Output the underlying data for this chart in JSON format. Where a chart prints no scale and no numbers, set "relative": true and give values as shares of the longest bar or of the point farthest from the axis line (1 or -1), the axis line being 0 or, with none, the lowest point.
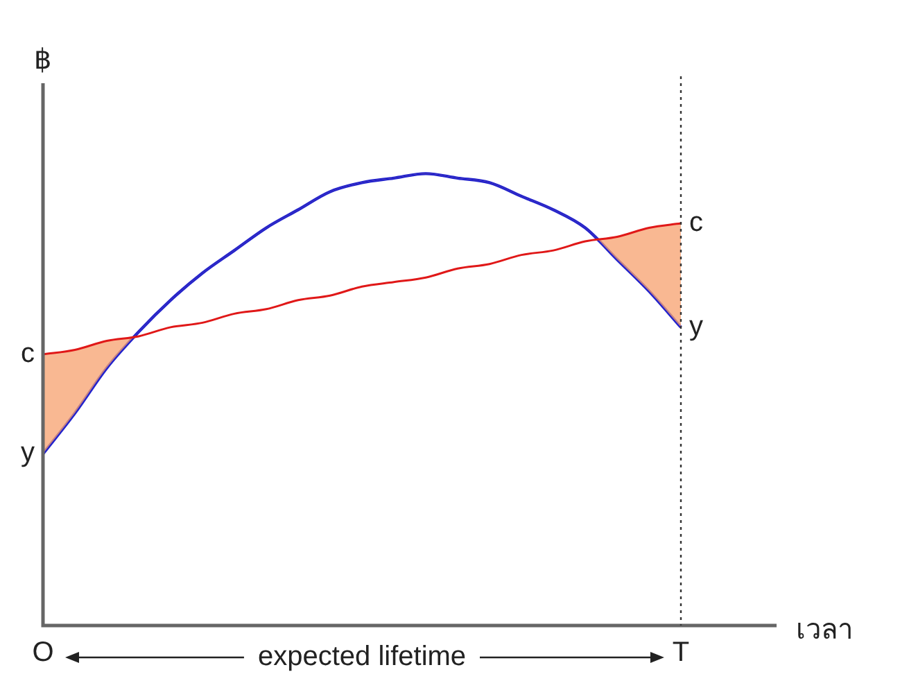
{
  "chart_data": {
    "type": "line",
    "relative": true,
    "xlabel": "เวลา",
    "ylabel": "฿",
    "categories": [
      "O",
      null,
      null,
      null,
      null,
      null,
      null,
      null,
      null,
      null,
      null,
      null,
      null,
      null,
      null,
      null,
      null,
      null,
      null,
      null,
      "T",
      null,
      null,
      null
    ],
    "series": [
      {
        "color": "#e01818",
        "values": [
          0.6,
          0.61,
          0.63,
          0.64,
          0.66,
          0.67,
          0.69,
          0.7,
          0.72,
          0.73,
          0.75,
          0.76,
          0.77,
          0.79,
          0.8,
          0.82,
          0.83,
          0.85,
          0.86,
          0.88,
          0.89,
          null,
          null,
          null
        ]
      },
      {
        "color": "#2222cc",
        "values": [
          0.38,
          0.47,
          0.57,
          0.65,
          0.72,
          0.78,
          0.83,
          0.88,
          0.92,
          0.96,
          0.98,
          0.99,
          1.0,
          0.99,
          0.98,
          0.95,
          0.92,
          0.88,
          0.81,
          0.74,
          0.66,
          null,
          null,
          null
        ]
      }
    ],
    "ref_lines": [
      {
        "axis": "x",
        "value": "T",
        "color": "#333333",
        "line_style": "dotted"
      }
    ],
    "annotations": [
      "expected lifetime",
      {
        "text": "c",
        "x": "O",
        "y": 0.6
      },
      {
        "text": "y",
        "x": "O",
        "y": 0.38
      },
      {
        "text": "c",
        "x": "T",
        "y": 0.89
      },
      {
        "text": "y",
        "x": "T",
        "y": 0.66
      }
    ],
    "grid": false,
    "legend": false,
    "marker": "none",
    "line_style": "solid"
  }
}
